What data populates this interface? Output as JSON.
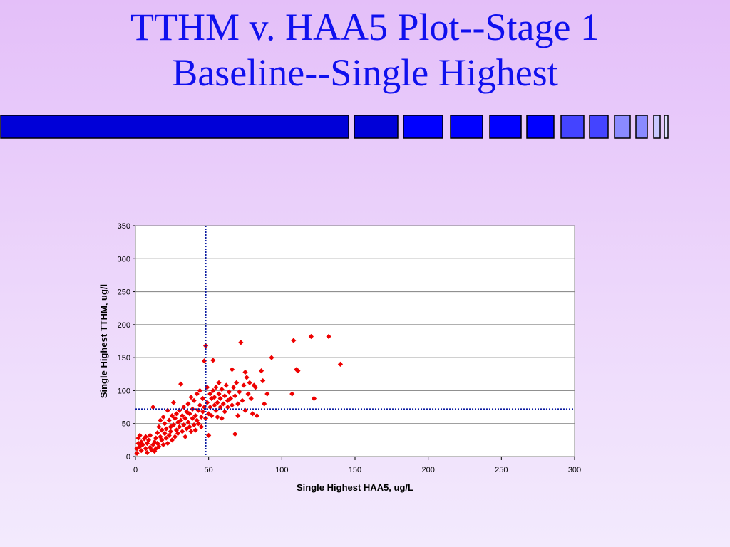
{
  "slide": {
    "title_line1": "TTHM v. HAA5 Plot--Stage 1",
    "title_line2": "Baseline--Single Highest"
  },
  "colors": {
    "background": "#e4bff9",
    "title": "#1010ee",
    "marker": "#ee0000",
    "reference_lines": "#0a1aa0",
    "bar_dark": "#0000d8",
    "bar_mid": "#0000ff",
    "bar_light": "#5050ff",
    "bar_lighter": "#8a8aff"
  },
  "chart_data": {
    "type": "scatter",
    "title": "",
    "xlabel": "Single Highest HAA5, ug/L",
    "ylabel": "Single Highest TTHM, ug/l",
    "xlim": [
      0,
      300
    ],
    "ylim": [
      0,
      350
    ],
    "xticks": [
      0,
      50,
      100,
      150,
      200,
      250,
      300
    ],
    "yticks": [
      0,
      50,
      100,
      150,
      200,
      250,
      300,
      350
    ],
    "grid": "horizontal",
    "marker": "diamond",
    "reference_lines": {
      "x": 48,
      "y": 72
    },
    "points": [
      [
        1,
        5
      ],
      [
        1,
        12
      ],
      [
        2,
        20
      ],
      [
        2,
        28
      ],
      [
        3,
        15
      ],
      [
        3,
        32
      ],
      [
        4,
        9
      ],
      [
        4,
        22
      ],
      [
        5,
        18
      ],
      [
        6,
        27
      ],
      [
        7,
        12
      ],
      [
        7,
        30
      ],
      [
        8,
        6
      ],
      [
        8,
        20
      ],
      [
        9,
        25
      ],
      [
        10,
        14
      ],
      [
        10,
        32
      ],
      [
        11,
        10
      ],
      [
        12,
        18
      ],
      [
        12,
        75
      ],
      [
        13,
        8
      ],
      [
        13,
        22
      ],
      [
        14,
        28
      ],
      [
        14,
        12
      ],
      [
        15,
        36
      ],
      [
        15,
        20
      ],
      [
        16,
        45
      ],
      [
        16,
        15
      ],
      [
        17,
        55
      ],
      [
        17,
        30
      ],
      [
        18,
        25
      ],
      [
        18,
        40
      ],
      [
        19,
        18
      ],
      [
        19,
        60
      ],
      [
        20,
        35
      ],
      [
        20,
        50
      ],
      [
        21,
        28
      ],
      [
        21,
        42
      ],
      [
        22,
        70
      ],
      [
        22,
        20
      ],
      [
        23,
        32
      ],
      [
        23,
        55
      ],
      [
        24,
        45
      ],
      [
        24,
        38
      ],
      [
        25,
        62
      ],
      [
        25,
        25
      ],
      [
        26,
        48
      ],
      [
        26,
        82
      ],
      [
        27,
        30
      ],
      [
        27,
        58
      ],
      [
        28,
        40
      ],
      [
        28,
        65
      ],
      [
        29,
        52
      ],
      [
        29,
        35
      ],
      [
        30,
        70
      ],
      [
        30,
        45
      ],
      [
        31,
        55
      ],
      [
        31,
        110
      ],
      [
        32,
        38
      ],
      [
        32,
        62
      ],
      [
        33,
        48
      ],
      [
        33,
        75
      ],
      [
        34,
        30
      ],
      [
        34,
        58
      ],
      [
        35,
        68
      ],
      [
        35,
        42
      ],
      [
        36,
        80
      ],
      [
        36,
        52
      ],
      [
        37,
        45
      ],
      [
        37,
        65
      ],
      [
        38,
        90
      ],
      [
        38,
        38
      ],
      [
        39,
        58
      ],
      [
        39,
        72
      ],
      [
        40,
        48
      ],
      [
        40,
        85
      ],
      [
        41,
        62
      ],
      [
        41,
        40
      ],
      [
        42,
        95
      ],
      [
        42,
        55
      ],
      [
        43,
        70
      ],
      [
        43,
        50
      ],
      [
        44,
        78
      ],
      [
        44,
        100
      ],
      [
        45,
        60
      ],
      [
        45,
        45
      ],
      [
        46,
        88
      ],
      [
        46,
        68
      ],
      [
        47,
        145
      ],
      [
        47,
        75
      ],
      [
        48,
        168
      ],
      [
        48,
        58
      ],
      [
        49,
        105
      ],
      [
        49,
        82
      ],
      [
        50,
        65
      ],
      [
        50,
        32
      ],
      [
        51,
        95
      ],
      [
        51,
        75
      ],
      [
        52,
        88
      ],
      [
        52,
        62
      ],
      [
        53,
        146
      ],
      [
        53,
        100
      ],
      [
        54,
        78
      ],
      [
        54,
        90
      ],
      [
        55,
        70
      ],
      [
        55,
        105
      ],
      [
        56,
        82
      ],
      [
        56,
        60
      ],
      [
        57,
        95
      ],
      [
        57,
        112
      ],
      [
        58,
        75
      ],
      [
        58,
        88
      ],
      [
        59,
        58
      ],
      [
        59,
        102
      ],
      [
        60,
        80
      ],
      [
        61,
        92
      ],
      [
        61,
        68
      ],
      [
        62,
        108
      ],
      [
        63,
        85
      ],
      [
        63,
        75
      ],
      [
        64,
        98
      ],
      [
        65,
        88
      ],
      [
        66,
        132
      ],
      [
        66,
        78
      ],
      [
        67,
        105
      ],
      [
        68,
        92
      ],
      [
        68,
        34
      ],
      [
        69,
        112
      ],
      [
        70,
        80
      ],
      [
        70,
        62
      ],
      [
        71,
        98
      ],
      [
        72,
        173
      ],
      [
        73,
        85
      ],
      [
        74,
        108
      ],
      [
        75,
        128
      ],
      [
        75,
        70
      ],
      [
        76,
        120
      ],
      [
        77,
        95
      ],
      [
        78,
        112
      ],
      [
        79,
        88
      ],
      [
        80,
        65
      ],
      [
        81,
        108
      ],
      [
        82,
        105
      ],
      [
        83,
        62
      ],
      [
        86,
        130
      ],
      [
        87,
        115
      ],
      [
        88,
        80
      ],
      [
        90,
        95
      ],
      [
        93,
        150
      ],
      [
        107,
        95
      ],
      [
        108,
        176
      ],
      [
        110,
        132
      ],
      [
        111,
        130
      ],
      [
        120,
        182
      ],
      [
        122,
        88
      ],
      [
        132,
        182
      ],
      [
        140,
        140
      ]
    ]
  }
}
